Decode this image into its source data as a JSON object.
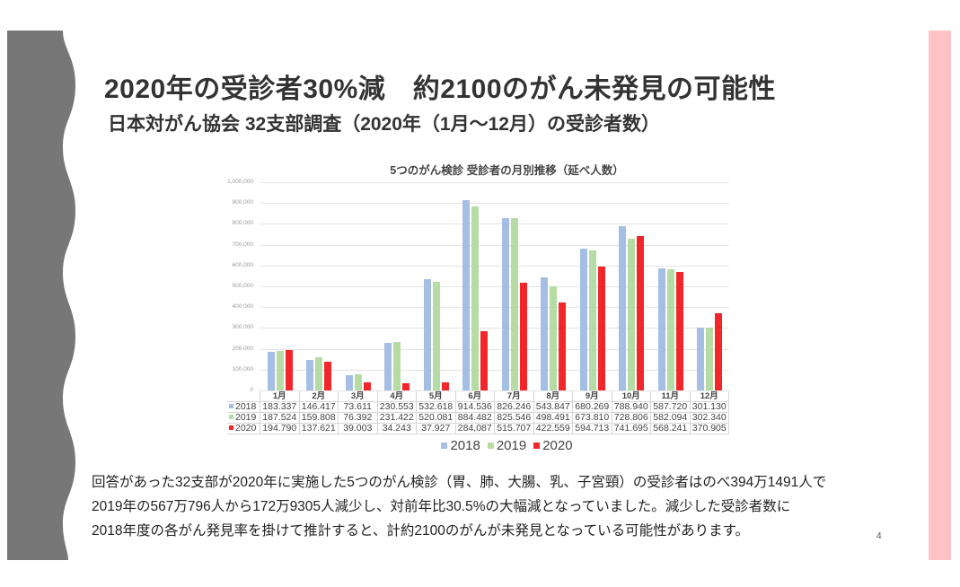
{
  "slide": {
    "title": "2020年の受診者30%減　約2100のがん未発見の可能性",
    "subtitle": "日本対がん協会 32支部調査（2020年（1月～12月）の受診者数）",
    "body_lines": [
      "回答があった32支部が2020年に実施した5つのがん検診（胃、肺、大腸、乳、子宮頸）の受診者はのべ394万1491人で",
      "2019年の567万796人から172万9305人減少し、対前年比30.5%の大幅減となっていました。減少した受診者数に",
      "2018年度の各がん発見率を掛けて推計すると、計約2100のがんが未発見となっている可能性があります。"
    ],
    "page_number": "4",
    "colors": {
      "left_panel": "#777777",
      "right_bar": "#ffc3c6",
      "series_2018": "#a4bfe3",
      "series_2019": "#b7dba5",
      "series_2020": "#f2262b"
    }
  },
  "chart_data": {
    "type": "bar",
    "title": "5つのがん検診 受診者の月別推移（延べ人数）",
    "xlabel": "",
    "ylabel": "",
    "ylim": [
      0,
      1000000
    ],
    "yticks": [
      "0",
      "100,000",
      "200,000",
      "300,000",
      "400,000",
      "500,000",
      "600,000",
      "700,000",
      "800,000",
      "900,000",
      "1,000,000"
    ],
    "grid": true,
    "legend_position": "bottom",
    "categories": [
      "1月",
      "2月",
      "3月",
      "4月",
      "5月",
      "6月",
      "7月",
      "8月",
      "9月",
      "10月",
      "11月",
      "12月"
    ],
    "series": [
      {
        "name": "2018",
        "color": "#a4bfe3",
        "values": [
          183337,
          146417,
          73611,
          230553,
          532618,
          914536,
          826246,
          543847,
          680269,
          788940,
          587720,
          301130
        ],
        "labels": [
          "183.337",
          "146.417",
          "73.611",
          "230.553",
          "532.618",
          "914.536",
          "826.246",
          "543.847",
          "680.269",
          "788.940",
          "587.720",
          "301.130"
        ]
      },
      {
        "name": "2019",
        "color": "#b7dba5",
        "values": [
          187524,
          159808,
          76392,
          231422,
          520081,
          884482,
          825546,
          498491,
          673810,
          728806,
          582094,
          302340
        ],
        "labels": [
          "187.524",
          "159.808",
          "76.392",
          "231.422",
          "520.081",
          "884.482",
          "825.546",
          "498.491",
          "673.810",
          "728.806",
          "582.094",
          "302.340"
        ]
      },
      {
        "name": "2020",
        "color": "#f2262b",
        "values": [
          194790,
          137621,
          39003,
          34243,
          37927,
          284087,
          515707,
          422559,
          594713,
          741695,
          568241,
          370905
        ],
        "labels": [
          "194.790",
          "137.621",
          "39.003",
          "34.243",
          "37.927",
          "284,087",
          "515.707",
          "422.559",
          "594.713",
          "741.695",
          "568.241",
          "370.905"
        ]
      }
    ],
    "data_table": true
  }
}
